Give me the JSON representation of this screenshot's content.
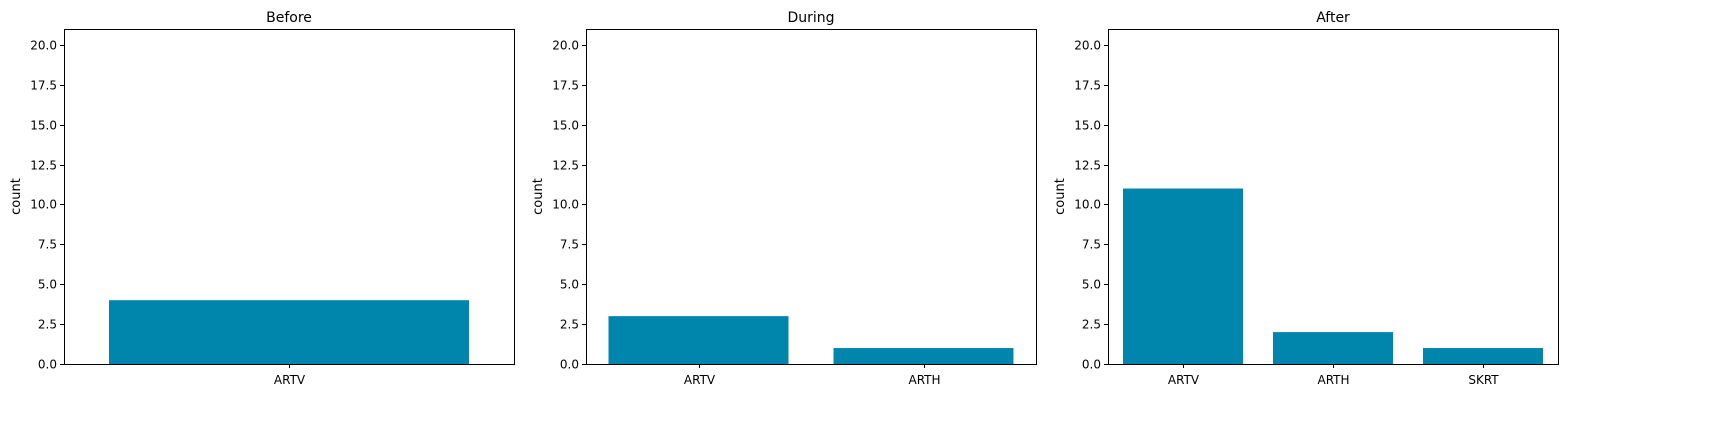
{
  "style": {
    "bar_color": "#0086ad",
    "axis_color": "#000000",
    "background": "#ffffff"
  },
  "chart_data": [
    {
      "type": "bar",
      "title": "Before",
      "xlabel": "",
      "ylabel": "count",
      "ylim": [
        0,
        21
      ],
      "yticks": [
        "0.0",
        "2.5",
        "5.0",
        "7.5",
        "10.0",
        "12.5",
        "15.0",
        "17.5",
        "20.0"
      ],
      "categories": [
        "ARTV"
      ],
      "values": [
        4
      ],
      "grid": false
    },
    {
      "type": "bar",
      "title": "During",
      "xlabel": "",
      "ylabel": "count",
      "ylim": [
        0,
        21
      ],
      "yticks": [
        "0.0",
        "2.5",
        "5.0",
        "7.5",
        "10.0",
        "12.5",
        "15.0",
        "17.5",
        "20.0"
      ],
      "categories": [
        "ARTV",
        "ARTH"
      ],
      "values": [
        3,
        1
      ],
      "grid": false
    },
    {
      "type": "bar",
      "title": "After",
      "xlabel": "",
      "ylabel": "count",
      "ylim": [
        0,
        21
      ],
      "yticks": [
        "0.0",
        "2.5",
        "5.0",
        "7.5",
        "10.0",
        "12.5",
        "15.0",
        "17.5",
        "20.0"
      ],
      "categories": [
        "ARTV",
        "ARTH",
        "SKRT"
      ],
      "values": [
        11,
        2,
        1
      ],
      "grid": false
    }
  ]
}
